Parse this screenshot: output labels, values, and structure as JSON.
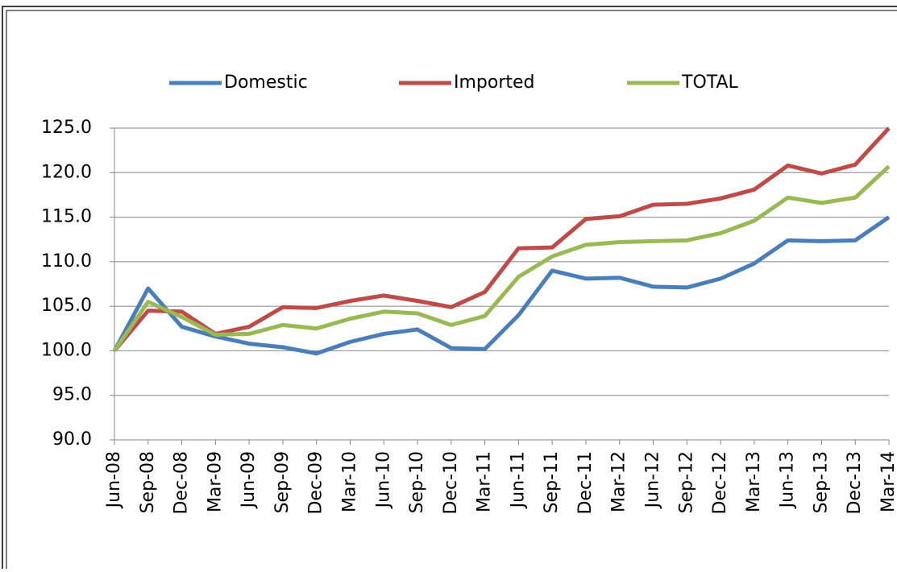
{
  "chart_data": {
    "type": "line",
    "categories": [
      "Jun-08",
      "Sep-08",
      "Dec-08",
      "Mar-09",
      "Jun-09",
      "Sep-09",
      "Dec-09",
      "Mar-10",
      "Jun-10",
      "Sep-10",
      "Dec-10",
      "Mar-11",
      "Jun-11",
      "Sep-11",
      "Dec-11",
      "Mar-12",
      "Jun-12",
      "Sep-12",
      "Dec-12",
      "Mar-13",
      "Jun-13",
      "Sep-13",
      "Dec-13",
      "Mar-14"
    ],
    "series": [
      {
        "name": "Domestic",
        "color": "#4a7ebb",
        "values": [
          100,
          107,
          102.7,
          101.6,
          100.8,
          100.4,
          99.7,
          101,
          101.9,
          102.4,
          100.3,
          100.2,
          104,
          109,
          108.1,
          108.2,
          107.2,
          107.1,
          108.1,
          109.8,
          112.4,
          112.3,
          112.4,
          115
        ]
      },
      {
        "name": "Imported",
        "color": "#be4b48",
        "values": [
          100,
          104.5,
          104.4,
          101.9,
          102.7,
          104.9,
          104.8,
          105.6,
          106.2,
          105.6,
          104.9,
          106.6,
          111.5,
          111.6,
          114.8,
          115.1,
          116.4,
          116.5,
          117.1,
          118.1,
          120.8,
          119.9,
          120.9,
          125
        ]
      },
      {
        "name": "TOTAL",
        "color": "#98b954",
        "values": [
          100,
          105.5,
          103.8,
          101.8,
          101.9,
          102.9,
          102.5,
          103.6,
          104.4,
          104.2,
          102.9,
          103.9,
          108.3,
          110.6,
          111.9,
          112.2,
          112.3,
          112.4,
          113.2,
          114.6,
          117.2,
          116.6,
          117.2,
          120.7
        ]
      }
    ],
    "ylim": [
      90,
      125
    ],
    "yticks": [
      {
        "value": 90,
        "label": "90.0"
      },
      {
        "value": 95,
        "label": "95.0"
      },
      {
        "value": 100,
        "label": "100.0"
      },
      {
        "value": 105,
        "label": "105.0"
      },
      {
        "value": 110,
        "label": "110.0"
      },
      {
        "value": 115,
        "label": "115.0"
      },
      {
        "value": 120,
        "label": "120.0"
      },
      {
        "value": 125,
        "label": "125.0"
      }
    ],
    "grid": true
  }
}
